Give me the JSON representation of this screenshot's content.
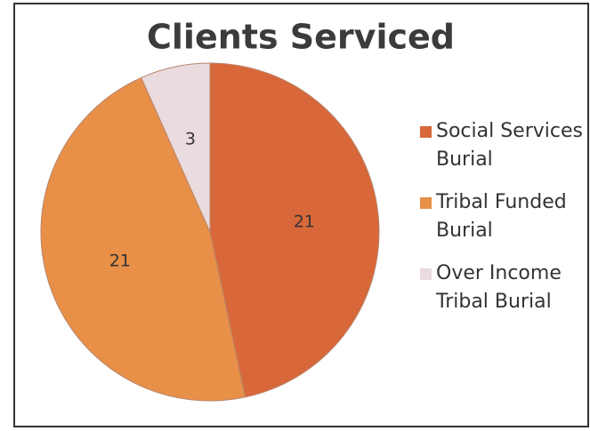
{
  "chart_data": {
    "type": "pie",
    "title": "Clients Serviced",
    "categories": [
      "Social Services Burial",
      "Tribal Funded Burial",
      "Over Income Tribal Burial"
    ],
    "values": [
      21,
      21,
      3
    ],
    "colors": [
      "#d8673a",
      "#e88f48",
      "#eadbde"
    ],
    "legend": "right"
  }
}
